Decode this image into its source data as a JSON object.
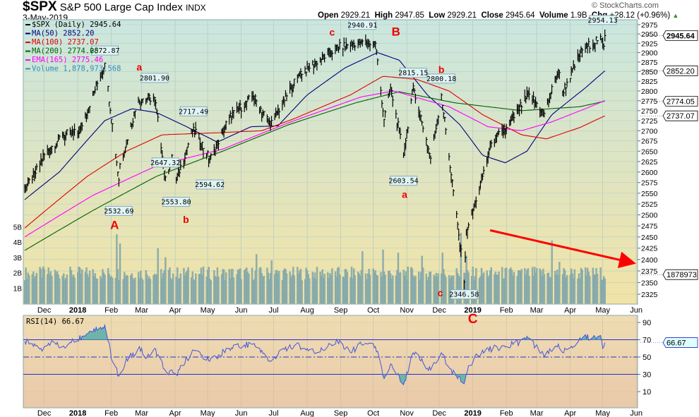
{
  "header": {
    "symbol": "$SPX",
    "name": "S&P 500 Large Cap Index",
    "exchange": "INDX",
    "date": "3-May-2019",
    "open_label": "Open",
    "open": "2929.21",
    "high_label": "High",
    "high": "2947.85",
    "low_label": "Low",
    "low": "2929.21",
    "close_label": "Close",
    "close": "2945.64",
    "volume_label": "Volume",
    "volume": "1.9B",
    "chg_label": "Chg",
    "chg": "+28.12 (+0.96%)",
    "watermark": "© StockCharts.com"
  },
  "legend": [
    {
      "text": "$SPX (Daily) 2945.64",
      "color": "#000000"
    },
    {
      "text": "MA(50) 2852.20",
      "color": "#00007f"
    },
    {
      "text": "MA(100) 2737.07",
      "color": "#e00000"
    },
    {
      "text": "MA(200) 2774.05",
      "color": "#006000"
    },
    {
      "text": "EMA(165) 2775.46",
      "color": "#ff00ff"
    },
    {
      "text": "Volume 1,878,973,568",
      "color": "#2f8fbf"
    }
  ],
  "rsi_legend": "RSI(14) 66.67",
  "chart_data": {
    "type": "line",
    "title": "$SPX S&P 500 Large Cap Index (Daily)",
    "ylim": [
      2325,
      2975
    ],
    "yscale": "log",
    "y_ticks": [
      2325,
      2350,
      2375,
      2400,
      2425,
      2450,
      2475,
      2500,
      2525,
      2550,
      2575,
      2600,
      2625,
      2650,
      2675,
      2700,
      2725,
      2750,
      2775,
      2800,
      2825,
      2850,
      2875,
      2900,
      2925,
      2950,
      2975
    ],
    "x_ticks": [
      {
        "date": "2017-12-01",
        "label": "Dec"
      },
      {
        "date": "2018-01-01",
        "label": "2018"
      },
      {
        "date": "2018-02-01",
        "label": "Feb"
      },
      {
        "date": "2018-03-01",
        "label": "Mar"
      },
      {
        "date": "2018-04-01",
        "label": "Apr"
      },
      {
        "date": "2018-05-01",
        "label": "May"
      },
      {
        "date": "2018-06-01",
        "label": "Jun"
      },
      {
        "date": "2018-07-01",
        "label": "Jul"
      },
      {
        "date": "2018-08-01",
        "label": "Aug"
      },
      {
        "date": "2018-09-01",
        "label": "Sep"
      },
      {
        "date": "2018-10-01",
        "label": "Oct"
      },
      {
        "date": "2018-11-01",
        "label": "Nov"
      },
      {
        "date": "2018-12-01",
        "label": "Dec"
      },
      {
        "date": "2019-01-01",
        "label": "2019"
      },
      {
        "date": "2019-02-01",
        "label": "Feb"
      },
      {
        "date": "2019-03-01",
        "label": "Mar"
      },
      {
        "date": "2019-04-01",
        "label": "Apr"
      },
      {
        "date": "2019-05-01",
        "label": "May"
      },
      {
        "date": "2019-06-01",
        "label": "Jun"
      }
    ],
    "price_anchors": [
      [
        "2017-11-13",
        2565
      ],
      [
        "2017-11-20",
        2582
      ],
      [
        "2017-12-01",
        2642
      ],
      [
        "2017-12-18",
        2690
      ],
      [
        "2018-01-02",
        2695
      ],
      [
        "2018-01-26",
        2872
      ],
      [
        "2018-02-08",
        2581
      ],
      [
        "2018-02-09",
        2619
      ],
      [
        "2018-02-26",
        2779
      ],
      [
        "2018-03-13",
        2783
      ],
      [
        "2018-03-23",
        2588
      ],
      [
        "2018-03-29",
        2640
      ],
      [
        "2018-04-02",
        2581
      ],
      [
        "2018-04-18",
        2708
      ],
      [
        "2018-05-03",
        2630
      ],
      [
        "2018-05-21",
        2733
      ],
      [
        "2018-06-12",
        2787
      ],
      [
        "2018-06-28",
        2716
      ],
      [
        "2018-07-25",
        2846
      ],
      [
        "2018-08-29",
        2914
      ],
      [
        "2018-09-20",
        2930
      ],
      [
        "2018-10-03",
        2925
      ],
      [
        "2018-10-11",
        2728
      ],
      [
        "2018-10-17",
        2809
      ],
      [
        "2018-10-29",
        2641
      ],
      [
        "2018-11-07",
        2813
      ],
      [
        "2018-11-23",
        2633
      ],
      [
        "2018-12-03",
        2790
      ],
      [
        "2018-12-10",
        2637
      ],
      [
        "2018-12-24",
        2351
      ],
      [
        "2018-12-26",
        2467
      ],
      [
        "2019-01-04",
        2532
      ],
      [
        "2019-01-18",
        2670
      ],
      [
        "2019-02-01",
        2707
      ],
      [
        "2019-02-22",
        2792
      ],
      [
        "2019-03-08",
        2743
      ],
      [
        "2019-03-21",
        2854
      ],
      [
        "2019-03-25",
        2798
      ],
      [
        "2019-04-12",
        2907
      ],
      [
        "2019-04-29",
        2943
      ],
      [
        "2019-05-01",
        2923
      ],
      [
        "2019-05-02",
        2917
      ],
      [
        "2019-05-03",
        2945.64
      ]
    ],
    "series": [
      {
        "name": "MA(50)",
        "color": "#00007f",
        "last": "2852.20",
        "anchors": [
          [
            "2017-11-13",
            2535
          ],
          [
            "2017-12-15",
            2600
          ],
          [
            "2018-01-26",
            2725
          ],
          [
            "2018-02-20",
            2755
          ],
          [
            "2018-03-15",
            2745
          ],
          [
            "2018-04-10",
            2712
          ],
          [
            "2018-05-10",
            2672
          ],
          [
            "2018-06-10",
            2710
          ],
          [
            "2018-07-05",
            2712
          ],
          [
            "2018-08-01",
            2790
          ],
          [
            "2018-09-05",
            2860
          ],
          [
            "2018-10-05",
            2900
          ],
          [
            "2018-10-25",
            2880
          ],
          [
            "2018-11-20",
            2790
          ],
          [
            "2018-12-20",
            2715
          ],
          [
            "2019-01-10",
            2640
          ],
          [
            "2019-01-31",
            2622
          ],
          [
            "2019-02-20",
            2650
          ],
          [
            "2019-03-15",
            2740
          ],
          [
            "2019-04-15",
            2808
          ],
          [
            "2019-05-03",
            2852.2
          ]
        ]
      },
      {
        "name": "MA(100)",
        "color": "#e00000",
        "last": "2737.07",
        "anchors": [
          [
            "2017-11-13",
            2470
          ],
          [
            "2018-01-10",
            2590
          ],
          [
            "2018-02-15",
            2650
          ],
          [
            "2018-03-20",
            2690
          ],
          [
            "2018-05-10",
            2695
          ],
          [
            "2018-06-20",
            2700
          ],
          [
            "2018-07-20",
            2730
          ],
          [
            "2018-09-10",
            2790
          ],
          [
            "2018-10-10",
            2838
          ],
          [
            "2018-11-10",
            2830
          ],
          [
            "2018-12-10",
            2800
          ],
          [
            "2019-01-10",
            2740
          ],
          [
            "2019-02-15",
            2690
          ],
          [
            "2019-03-10",
            2680
          ],
          [
            "2019-04-10",
            2708
          ],
          [
            "2019-05-03",
            2737.07
          ]
        ]
      },
      {
        "name": "MA(200)",
        "color": "#006000",
        "last": "2774.05",
        "anchors": [
          [
            "2017-11-13",
            2420
          ],
          [
            "2018-01-15",
            2510
          ],
          [
            "2018-03-15",
            2590
          ],
          [
            "2018-05-15",
            2650
          ],
          [
            "2018-07-15",
            2715
          ],
          [
            "2018-09-15",
            2770
          ],
          [
            "2018-10-25",
            2798
          ],
          [
            "2018-12-15",
            2770
          ],
          [
            "2019-02-15",
            2750
          ],
          [
            "2019-04-10",
            2760
          ],
          [
            "2019-05-03",
            2774.05
          ]
        ]
      },
      {
        "name": "EMA(165)",
        "color": "#ff00ff",
        "last": "2775.46",
        "anchors": [
          [
            "2017-11-13",
            2450
          ],
          [
            "2018-01-15",
            2545
          ],
          [
            "2018-03-15",
            2615
          ],
          [
            "2018-05-15",
            2655
          ],
          [
            "2018-07-15",
            2720
          ],
          [
            "2018-09-20",
            2785
          ],
          [
            "2018-10-20",
            2800
          ],
          [
            "2018-12-10",
            2760
          ],
          [
            "2019-01-15",
            2710
          ],
          [
            "2019-02-15",
            2700
          ],
          [
            "2019-03-15",
            2722
          ],
          [
            "2019-04-15",
            2755
          ],
          [
            "2019-05-03",
            2775.46
          ]
        ]
      }
    ],
    "volume": {
      "unit": "B",
      "last": "1878973",
      "ticks": [
        "1B",
        "2B",
        "3B",
        "4B",
        "5B"
      ],
      "typical": 2.0,
      "spikes": [
        [
          "2018-02-06",
          4.5
        ],
        [
          "2018-02-09",
          3.9
        ],
        [
          "2018-03-16",
          3.6
        ],
        [
          "2018-03-23",
          3.0
        ],
        [
          "2018-06-15",
          3.2
        ],
        [
          "2018-06-29",
          2.8
        ],
        [
          "2018-09-21",
          3.4
        ],
        [
          "2018-10-10",
          3.5
        ],
        [
          "2018-10-24",
          3.3
        ],
        [
          "2018-11-15",
          3.1
        ],
        [
          "2018-12-04",
          3.3
        ],
        [
          "2018-12-21",
          4.6
        ],
        [
          "2018-12-24",
          2.0
        ],
        [
          "2018-12-26",
          3.1
        ],
        [
          "2019-03-15",
          4.1
        ],
        [
          "2019-03-22",
          2.7
        ]
      ]
    },
    "annotations": [
      {
        "date": "2018-01-26",
        "value": "2872.87",
        "pos": "above"
      },
      {
        "date": "2018-02-08",
        "value": "2532.69",
        "pos": "below"
      },
      {
        "date": "2018-03-13",
        "value": "2801.90",
        "pos": "above"
      },
      {
        "date": "2018-03-23",
        "value": "2647.32",
        "pos": "below"
      },
      {
        "date": "2018-04-18",
        "value": "2717.49",
        "pos": "above"
      },
      {
        "date": "2018-04-02",
        "value": "2553.80",
        "pos": "below"
      },
      {
        "date": "2018-05-03",
        "value": "2594.62",
        "pos": "below"
      },
      {
        "date": "2018-09-21",
        "value": "2940.91",
        "pos": "above"
      },
      {
        "date": "2018-11-07",
        "value": "2815.15",
        "pos": "above"
      },
      {
        "date": "2018-12-03",
        "value": "2800.18",
        "pos": "above"
      },
      {
        "date": "2018-10-29",
        "value": "2603.54",
        "pos": "below"
      },
      {
        "date": "2018-12-24",
        "value": "2346.58",
        "pos": "below"
      },
      {
        "date": "2019-05-01",
        "value": "2954.13",
        "pos": "above"
      }
    ],
    "wave_labels": [
      {
        "text": "A",
        "date": "2018-02-04",
        "price": 2476,
        "big": true
      },
      {
        "text": "a",
        "date": "2018-03-08",
        "price": 2840
      },
      {
        "text": "b",
        "date": "2018-04-11",
        "price": 2490
      },
      {
        "text": "c",
        "date": "2018-08-24",
        "price": 2955
      },
      {
        "text": "B",
        "date": "2018-10-22",
        "price": 2955,
        "big": true
      },
      {
        "text": "b",
        "date": "2018-12-03",
        "price": 2856
      },
      {
        "text": "a",
        "date": "2018-10-30",
        "price": 2547
      },
      {
        "text": "c",
        "date": "2018-12-02",
        "price": 2328
      }
    ],
    "trend_arrow": {
      "from": [
        "2019-01-17",
        2465
      ],
      "to": [
        "2019-05-28",
        2393
      ],
      "color": "#ff0000"
    },
    "rsi": {
      "name": "RSI(14)",
      "last": "66.67",
      "ylim": [
        0,
        100
      ],
      "ticks": [
        10,
        30,
        50,
        70,
        90
      ],
      "overbought": 70,
      "oversold": 30,
      "mid": 50,
      "wave_label": {
        "text": "C",
        "date": "2019-01-01",
        "value": 94
      },
      "anchors": [
        [
          "2017-11-13",
          68
        ],
        [
          "2017-11-28",
          60
        ],
        [
          "2017-12-05",
          66
        ],
        [
          "2017-12-18",
          62
        ],
        [
          "2018-01-05",
          74
        ],
        [
          "2018-01-12",
          80
        ],
        [
          "2018-01-26",
          87
        ],
        [
          "2018-02-02",
          45
        ],
        [
          "2018-02-08",
          28
        ],
        [
          "2018-02-14",
          44
        ],
        [
          "2018-02-26",
          60
        ],
        [
          "2018-03-06",
          50
        ],
        [
          "2018-03-13",
          60
        ],
        [
          "2018-03-23",
          34
        ],
        [
          "2018-04-02",
          30
        ],
        [
          "2018-04-18",
          58
        ],
        [
          "2018-05-03",
          45
        ],
        [
          "2018-05-21",
          60
        ],
        [
          "2018-06-12",
          65
        ],
        [
          "2018-06-28",
          45
        ],
        [
          "2018-07-10",
          60
        ],
        [
          "2018-07-25",
          63
        ],
        [
          "2018-08-10",
          55
        ],
        [
          "2018-08-29",
          68
        ],
        [
          "2018-09-10",
          55
        ],
        [
          "2018-09-20",
          65
        ],
        [
          "2018-10-03",
          62
        ],
        [
          "2018-10-11",
          25
        ],
        [
          "2018-10-17",
          42
        ],
        [
          "2018-10-29",
          18
        ],
        [
          "2018-11-07",
          55
        ],
        [
          "2018-11-23",
          35
        ],
        [
          "2018-12-03",
          55
        ],
        [
          "2018-12-10",
          38
        ],
        [
          "2018-12-24",
          19
        ],
        [
          "2018-12-28",
          40
        ],
        [
          "2019-01-10",
          58
        ],
        [
          "2019-02-01",
          62
        ],
        [
          "2019-02-22",
          72
        ],
        [
          "2019-03-08",
          50
        ],
        [
          "2019-03-21",
          65
        ],
        [
          "2019-03-25",
          55
        ],
        [
          "2019-04-12",
          72
        ],
        [
          "2019-04-29",
          75
        ],
        [
          "2019-05-01",
          60
        ],
        [
          "2019-05-03",
          66.67
        ]
      ]
    }
  }
}
